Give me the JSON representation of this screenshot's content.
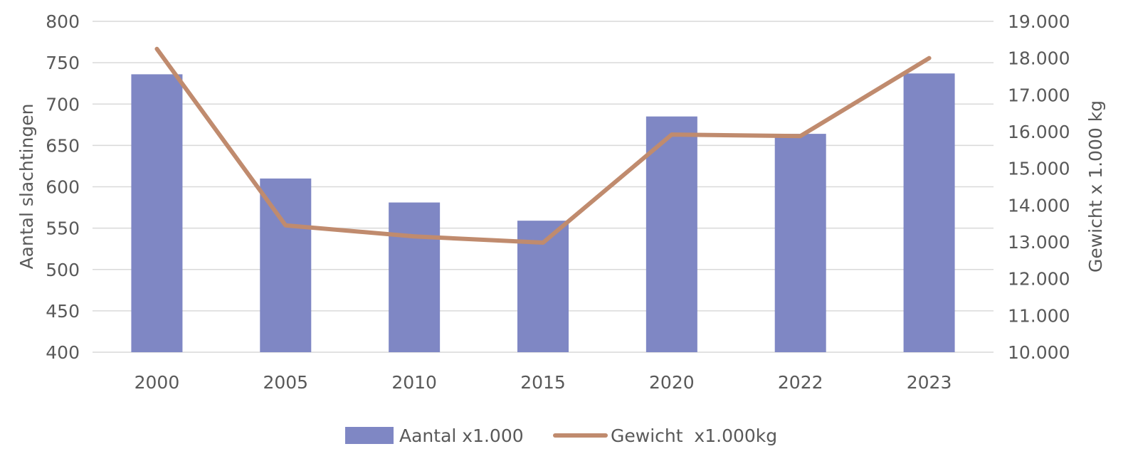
{
  "chart_data": {
    "type": "bar",
    "categories": [
      "2000",
      "2005",
      "2010",
      "2015",
      "2020",
      "2022",
      "2023"
    ],
    "series": [
      {
        "name": "Aantal x1.000",
        "type": "bar",
        "axis": "left",
        "color": "#7F87C4",
        "values": [
          736,
          610,
          581,
          559,
          685,
          664,
          737
        ]
      },
      {
        "name": "Gewicht  x1.000kg",
        "type": "line",
        "axis": "right",
        "color": "#C08B6E",
        "values": [
          18250,
          13450,
          13150,
          12980,
          15920,
          15880,
          18000
        ]
      }
    ],
    "ylabel": "Aantal slachtingen",
    "y2label": "Gewicht x 1.000 kg",
    "ylim": [
      400,
      800
    ],
    "y2lim": [
      10000,
      19000
    ],
    "yticks": [
      "400",
      "450",
      "500",
      "550",
      "600",
      "650",
      "700",
      "750",
      "800"
    ],
    "y2ticks": [
      "10.000",
      "11.000",
      "12.000",
      "13.000",
      "14.000",
      "15.000",
      "16.000",
      "17.000",
      "18.000",
      "19.000"
    ],
    "grid": true,
    "legend_position": "bottom"
  }
}
